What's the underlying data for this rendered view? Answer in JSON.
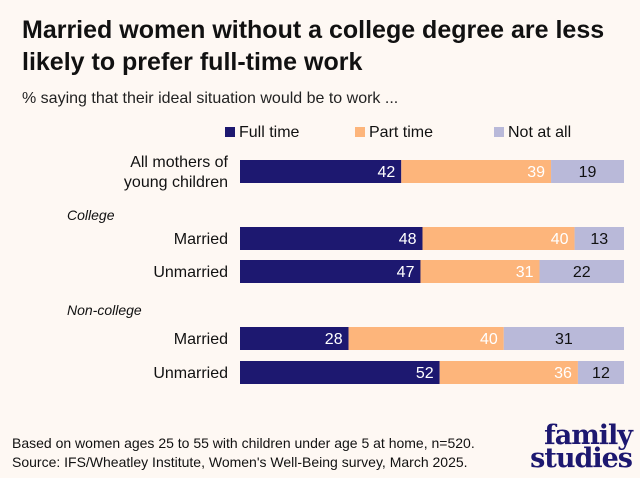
{
  "title": "Married women without a college degree are less likely to prefer full-time work",
  "subtitle": "% saying that their ideal situation would be to work ...",
  "footer": {
    "line1": "Based on women ages 25 to 55 with children under age 5 at home, n=520.",
    "line2": "Source: IFS/Wheatley Institute, Women's Well-Being survey, March 2025."
  },
  "logo": {
    "line1": "family",
    "line2": "studies"
  },
  "chart_data": {
    "type": "bar",
    "orientation": "horizontal",
    "stacked": true,
    "xlim": [
      0,
      100
    ],
    "grid": false,
    "legend_placement": "top",
    "groups": [
      {
        "label": "",
        "categories": [
          [
            "All mothers of",
            "young children"
          ]
        ],
        "rows": [
          0
        ]
      },
      {
        "label": "College",
        "rows": [
          1,
          2
        ]
      },
      {
        "label": "Non-college",
        "rows": [
          3,
          4
        ]
      }
    ],
    "categories": [
      "All mothers of young children",
      "Married",
      "Unmarried",
      "Married",
      "Unmarried"
    ],
    "category_lines": [
      [
        "All mothers of",
        "young children"
      ],
      [
        "Married"
      ],
      [
        "Unmarried"
      ],
      [
        "Married"
      ],
      [
        "Unmarried"
      ]
    ],
    "series": [
      {
        "name": "Full time",
        "color": "#1d1870",
        "label_color": "#ffffff",
        "values": [
          42,
          48,
          47,
          28,
          52
        ]
      },
      {
        "name": "Part time",
        "color": "#fdb57b",
        "label_color": "#ffffff",
        "values": [
          39,
          40,
          31,
          40,
          36
        ]
      },
      {
        "name": "Not at all",
        "color": "#b9b9d9",
        "label_color": "#111111",
        "values": [
          19,
          13,
          22,
          31,
          12
        ]
      }
    ]
  }
}
